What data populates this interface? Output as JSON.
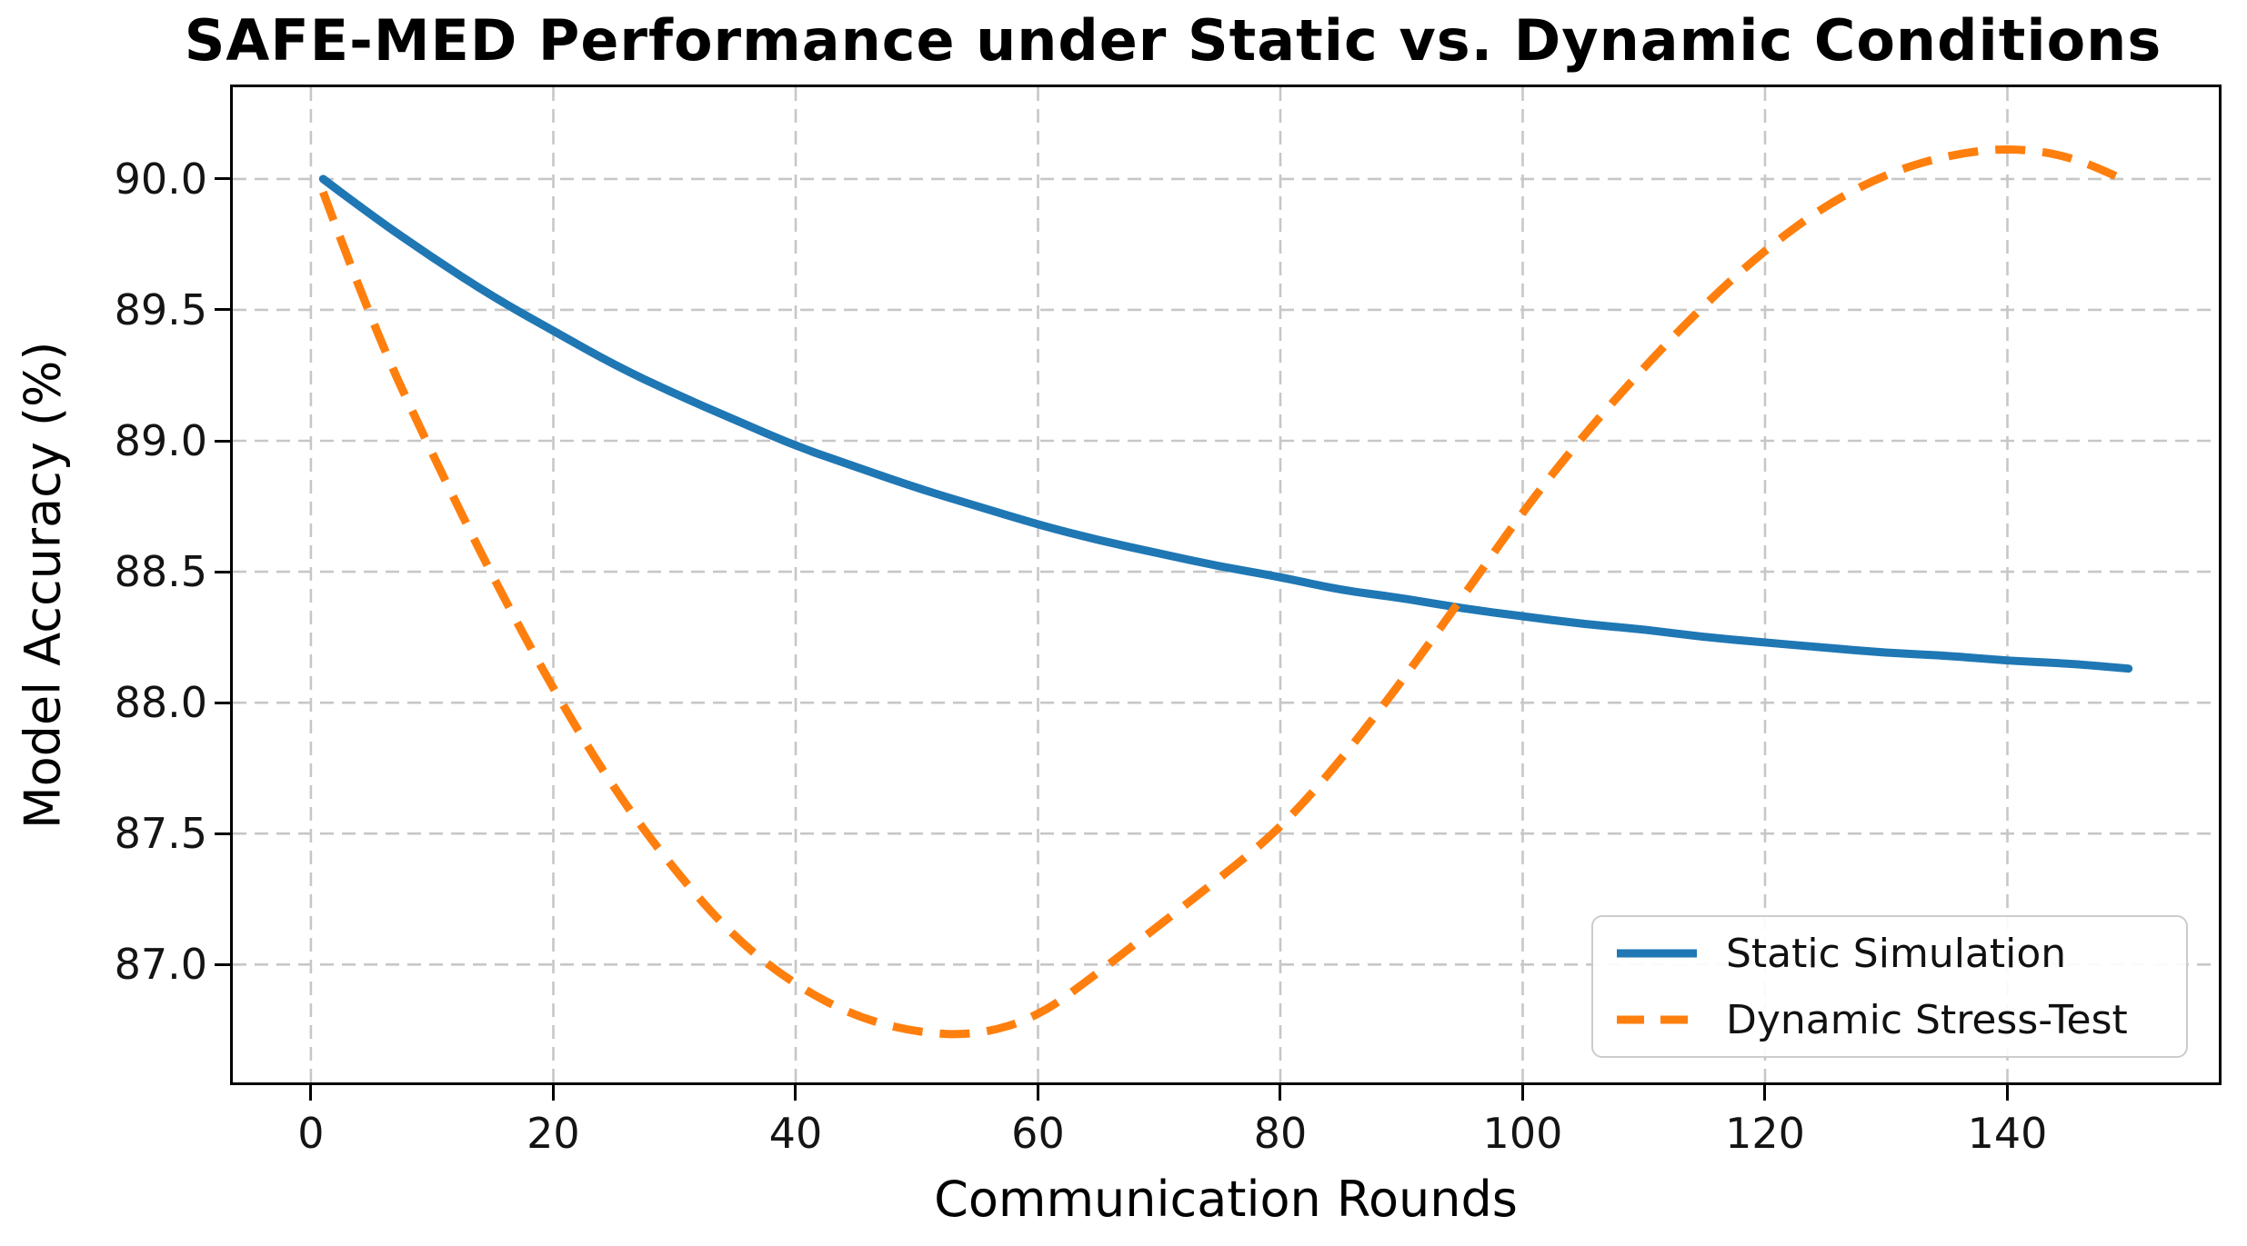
{
  "chart_data": {
    "type": "line",
    "title": "SAFE-MED Performance under Static vs. Dynamic Conditions",
    "xlabel": "Communication Rounds",
    "ylabel": "Model Accuracy (%)",
    "xlim": [
      -6.45,
      157.45
    ],
    "ylim": [
      86.55,
      90.35
    ],
    "grid": true,
    "legend_position": "lower right",
    "xtick_values": [
      0,
      20,
      40,
      60,
      80,
      100,
      120,
      140
    ],
    "xtick_labels": [
      "0",
      "20",
      "40",
      "60",
      "80",
      "100",
      "120",
      "140"
    ],
    "ytick_values": [
      87.0,
      87.5,
      88.0,
      88.5,
      89.0,
      89.5,
      90.0
    ],
    "ytick_labels": [
      "87.0",
      "87.5",
      "88.0",
      "88.5",
      "89.0",
      "89.5",
      "90.0"
    ],
    "series": [
      {
        "name": "Static Simulation",
        "color": "#1f77b4",
        "style": "solid",
        "x": [
          1,
          5,
          10,
          15,
          20,
          25,
          30,
          35,
          40,
          45,
          50,
          55,
          60,
          65,
          70,
          75,
          80,
          85,
          90,
          95,
          100,
          105,
          110,
          115,
          120,
          125,
          130,
          135,
          140,
          145,
          150
        ],
        "y": [
          90.0,
          89.86,
          89.7,
          89.55,
          89.42,
          89.29,
          89.18,
          89.08,
          88.98,
          88.9,
          88.82,
          88.75,
          88.68,
          88.62,
          88.57,
          88.52,
          88.48,
          88.43,
          88.4,
          88.36,
          88.33,
          88.3,
          88.28,
          88.25,
          88.23,
          88.21,
          88.19,
          88.18,
          88.16,
          88.15,
          88.13
        ]
      },
      {
        "name": "Dynamic Stress-Test",
        "color": "#ff7f0e",
        "style": "dashed",
        "x": [
          1,
          5,
          10,
          15,
          20,
          25,
          30,
          35,
          40,
          45,
          50,
          55,
          60,
          65,
          70,
          75,
          80,
          85,
          90,
          95,
          100,
          105,
          110,
          115,
          120,
          125,
          130,
          135,
          140,
          145,
          150
        ],
        "y": [
          89.95,
          89.45,
          88.95,
          88.48,
          88.05,
          87.67,
          87.36,
          87.1,
          86.92,
          86.8,
          86.74,
          86.73,
          86.8,
          86.97,
          87.15,
          87.33,
          87.52,
          87.78,
          88.08,
          88.4,
          88.73,
          89.02,
          89.28,
          89.52,
          89.73,
          89.9,
          90.02,
          90.09,
          90.12,
          90.09,
          89.99
        ]
      }
    ]
  }
}
